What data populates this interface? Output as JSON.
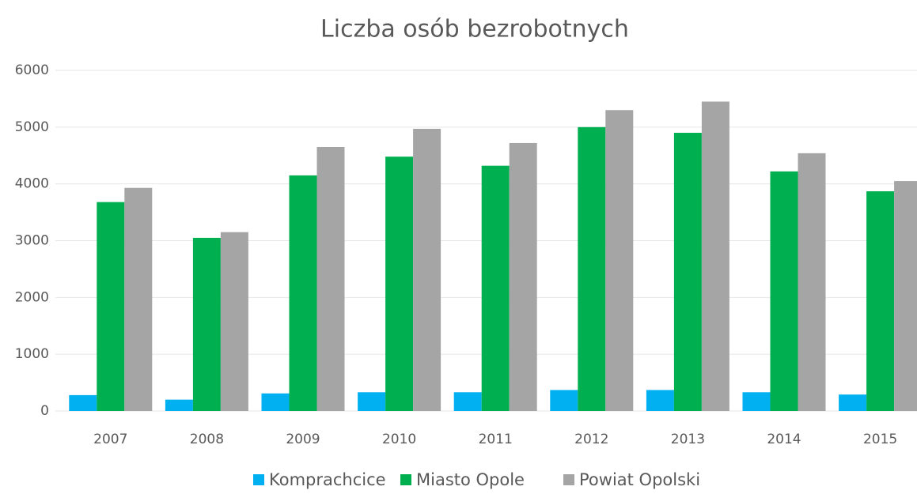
{
  "chart_data": {
    "type": "bar",
    "title": "Liczba osób bezrobotnych",
    "categories": [
      "2007",
      "2008",
      "2009",
      "2010",
      "2011",
      "2012",
      "2013",
      "2014",
      "2015"
    ],
    "series": [
      {
        "name": "Komprachcice",
        "color": "#00b0f0",
        "values": [
          280,
          200,
          310,
          330,
          330,
          370,
          370,
          330,
          290
        ]
      },
      {
        "name": "Miasto Opole",
        "color": "#00b050",
        "values": [
          3680,
          3050,
          4150,
          4480,
          4320,
          5000,
          4900,
          4220,
          3870
        ]
      },
      {
        "name": "Powiat Opolski",
        "color": "#a5a5a5",
        "values": [
          3930,
          3150,
          4650,
          4970,
          4720,
          5300,
          5450,
          4540,
          4050
        ]
      }
    ],
    "ylim": [
      0,
      6000
    ],
    "yticks": [
      0,
      1000,
      2000,
      3000,
      4000,
      5000,
      6000
    ],
    "grid": true,
    "legend": "bottom"
  }
}
